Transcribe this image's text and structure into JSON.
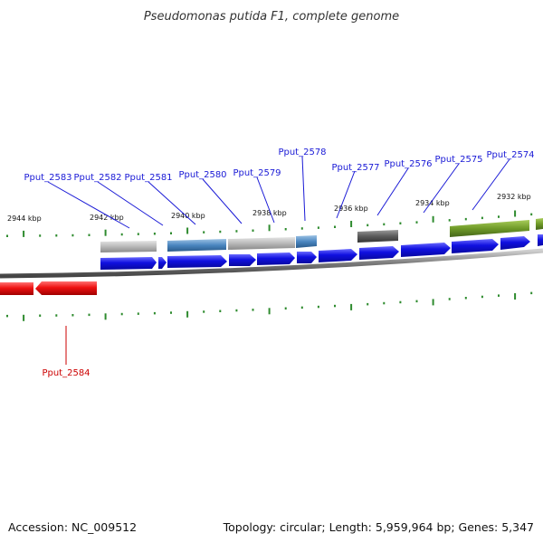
{
  "title": "Pseudomonas putida F1, complete genome",
  "footer": {
    "accession": "Accession: NC_009512",
    "summary": "Topology: circular; Length: 5,959,964 bp; Genes: 5,347"
  },
  "colors": {
    "backbone": "#7a7a7a",
    "tick": "#2e8b2e",
    "label_forward": "#1a1ad6",
    "label_reverse": "#cc0000",
    "cds_forward": "#1010e0",
    "cds_reverse": "#ee1111",
    "feature_grey": "#b8b8b8",
    "feature_steel": "#4a86c0",
    "feature_dark": "#5c5c5c",
    "feature_olive": "#6f9a28"
  },
  "scale_labels": [
    "2944 kbp",
    "2942 kbp",
    "2940 kbp",
    "2938 kbp",
    "2936 kbp",
    "2934 kbp",
    "2932 kbp"
  ],
  "gene_labels": {
    "forward": [
      "Pput_2583",
      "Pput_2582",
      "Pput_2581",
      "Pput_2580",
      "Pput_2579",
      "Pput_2578",
      "Pput_2577",
      "Pput_2576",
      "Pput_2575",
      "Pput_2574"
    ],
    "reverse": [
      "Pput_2584"
    ]
  }
}
